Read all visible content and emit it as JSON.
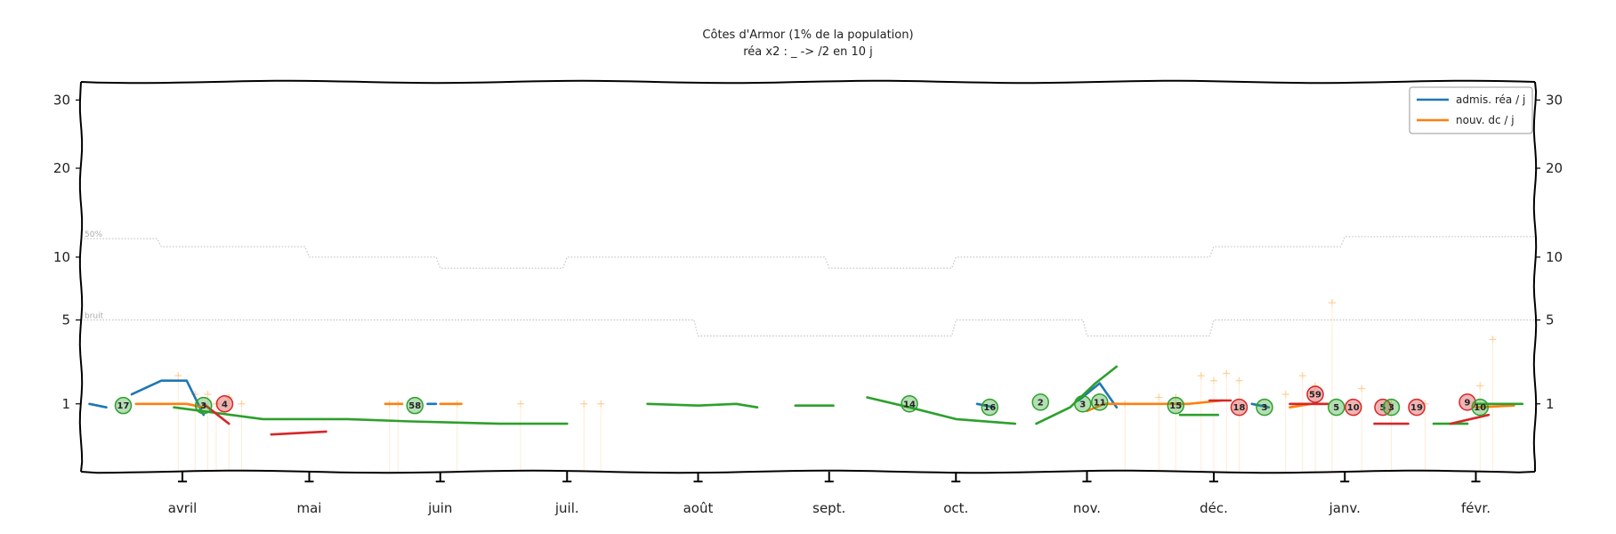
{
  "chart_data": {
    "type": "line",
    "title": "Côtes d'Armor (1% de la population)",
    "subtitle": "réa x2 : _ -> /2 en 10 j",
    "xlabel": "",
    "ylabel": "",
    "scale": "sqrt",
    "ylim": [
      0,
      33
    ],
    "yticks": [
      1,
      5,
      10,
      20,
      30
    ],
    "x_domain": [
      "2020-03-08",
      "2021-02-15"
    ],
    "months": [
      {
        "label": "avril",
        "date": "2020-04-01"
      },
      {
        "label": "mai",
        "date": "2020-05-01"
      },
      {
        "label": "juin",
        "date": "2020-06-01"
      },
      {
        "label": "juil.",
        "date": "2020-07-01"
      },
      {
        "label": "août",
        "date": "2020-08-01"
      },
      {
        "label": "sept.",
        "date": "2020-09-01"
      },
      {
        "label": "oct.",
        "date": "2020-10-01"
      },
      {
        "label": "nov.",
        "date": "2020-11-01"
      },
      {
        "label": "déc.",
        "date": "2020-12-01"
      },
      {
        "label": "janv.",
        "date": "2021-01-01"
      },
      {
        "label": "févr.",
        "date": "2021-02-01"
      }
    ],
    "legend": {
      "position": "top-right"
    },
    "series": [
      {
        "name": "admis. réa / j",
        "color": "#1f77b4",
        "segments": [
          [
            [
              "2020-03-10",
              1.0
            ],
            [
              "2020-03-14",
              0.9
            ]
          ],
          [
            [
              "2020-03-20",
              1.3
            ],
            [
              "2020-03-27",
              1.8
            ],
            [
              "2020-04-02",
              1.8
            ],
            [
              "2020-04-06",
              0.7
            ]
          ],
          [
            [
              "2020-05-29",
              1.0
            ],
            [
              "2020-05-31",
              1.0
            ]
          ],
          [
            [
              "2020-10-06",
              1.0
            ],
            [
              "2020-10-10",
              0.9
            ]
          ],
          [
            [
              "2020-10-30",
              1.1
            ],
            [
              "2020-11-04",
              1.7
            ],
            [
              "2020-11-08",
              0.9
            ]
          ],
          [
            [
              "2020-12-10",
              1.0
            ],
            [
              "2020-12-14",
              0.9
            ]
          ]
        ]
      },
      {
        "name": "nouv. dc / j",
        "color": "#ff7f0e",
        "segments": [
          [
            [
              "2020-03-21",
              1.0
            ],
            [
              "2020-04-02",
              1.0
            ],
            [
              "2020-04-06",
              0.9
            ]
          ],
          [
            [
              "2020-05-19",
              1.0
            ],
            [
              "2020-05-23",
              1.0
            ]
          ],
          [
            [
              "2020-06-01",
              1.0
            ],
            [
              "2020-06-06",
              1.0
            ]
          ],
          [
            [
              "2020-11-01",
              0.8
            ],
            [
              "2020-11-05",
              1.0
            ],
            [
              "2020-11-15",
              1.0
            ],
            [
              "2020-11-25",
              1.0
            ],
            [
              "2020-12-03",
              1.1
            ]
          ],
          [
            [
              "2020-12-19",
              0.9
            ],
            [
              "2020-12-24",
              1.0
            ],
            [
              "2020-12-28",
              1.0
            ]
          ],
          [
            [
              "2021-02-01",
              0.9
            ],
            [
              "2021-02-10",
              0.95
            ]
          ]
        ]
      },
      {
        "color": "#2ca02c",
        "segments": [
          [
            [
              "2020-03-30",
              0.9
            ],
            [
              "2020-04-20",
              0.6
            ],
            [
              "2020-05-10",
              0.6
            ],
            [
              "2020-05-25",
              0.55
            ],
            [
              "2020-06-15",
              0.5
            ],
            [
              "2020-07-01",
              0.5
            ]
          ],
          [
            [
              "2020-07-20",
              1.0
            ],
            [
              "2020-08-01",
              0.95
            ],
            [
              "2020-08-10",
              1.0
            ],
            [
              "2020-08-15",
              0.9
            ]
          ],
          [
            [
              "2020-08-24",
              0.95
            ],
            [
              "2020-09-02",
              0.95
            ]
          ],
          [
            [
              "2020-09-10",
              1.2
            ],
            [
              "2020-09-20",
              0.9
            ],
            [
              "2020-10-01",
              0.6
            ],
            [
              "2020-10-15",
              0.5
            ]
          ],
          [
            [
              "2020-10-20",
              0.5
            ],
            [
              "2020-10-28",
              0.9
            ],
            [
              "2020-11-03",
              1.7
            ],
            [
              "2020-11-08",
              2.4
            ]
          ],
          [
            [
              "2020-11-23",
              0.7
            ],
            [
              "2020-12-02",
              0.7
            ]
          ],
          [
            [
              "2021-01-22",
              0.5
            ],
            [
              "2021-01-30",
              0.5
            ]
          ],
          [
            [
              "2021-02-01",
              1.0
            ],
            [
              "2021-02-12",
              1.0
            ]
          ]
        ]
      },
      {
        "color": "#d62728",
        "segments": [
          [
            [
              "2020-04-06",
              1.0
            ],
            [
              "2020-04-12",
              0.5
            ]
          ],
          [
            [
              "2020-04-22",
              0.3
            ],
            [
              "2020-05-05",
              0.35
            ]
          ],
          [
            [
              "2020-11-30",
              1.1
            ],
            [
              "2020-12-05",
              1.1
            ]
          ],
          [
            [
              "2020-12-19",
              1.0
            ],
            [
              "2020-12-28",
              1.0
            ]
          ],
          [
            [
              "2021-01-08",
              0.5
            ],
            [
              "2021-01-16",
              0.5
            ]
          ],
          [
            [
              "2021-01-26",
              0.5
            ],
            [
              "2021-02-04",
              0.7
            ]
          ]
        ]
      }
    ],
    "reference_lines": [
      {
        "label": "50%",
        "points": [
          [
            "2020-03-08",
            11.8
          ],
          [
            "2020-03-26",
            11.8
          ],
          [
            "2020-03-27",
            11.0
          ],
          [
            "2020-04-30",
            11.0
          ],
          [
            "2020-05-01",
            10.0
          ],
          [
            "2020-05-31",
            10.0
          ],
          [
            "2020-06-01",
            9.0
          ],
          [
            "2020-06-30",
            9.0
          ],
          [
            "2020-07-01",
            10.0
          ],
          [
            "2020-08-31",
            10.0
          ],
          [
            "2020-09-01",
            9.0
          ],
          [
            "2020-09-30",
            9.0
          ],
          [
            "2020-10-01",
            10.0
          ],
          [
            "2020-11-30",
            10.0
          ],
          [
            "2020-12-01",
            11.0
          ],
          [
            "2020-12-31",
            11.0
          ],
          [
            "2021-01-01",
            12.0
          ],
          [
            "2021-02-15",
            12.0
          ]
        ]
      },
      {
        "label": "bruit",
        "points": [
          [
            "2020-03-08",
            5.0
          ],
          [
            "2020-07-31",
            5.0
          ],
          [
            "2020-08-01",
            4.0
          ],
          [
            "2020-09-30",
            4.0
          ],
          [
            "2020-10-01",
            5.0
          ],
          [
            "2020-10-31",
            5.0
          ],
          [
            "2020-11-01",
            4.0
          ],
          [
            "2020-11-30",
            4.0
          ],
          [
            "2020-12-01",
            5.0
          ],
          [
            "2021-02-15",
            5.0
          ]
        ]
      }
    ],
    "daily_markers": [
      [
        "2020-03-31",
        2.0
      ],
      [
        "2020-04-04",
        1.3
      ],
      [
        "2020-04-07",
        1.3
      ],
      [
        "2020-04-09",
        1.0
      ],
      [
        "2020-04-12",
        1.2
      ],
      [
        "2020-04-15",
        1.0
      ],
      [
        "2020-05-20",
        1.0
      ],
      [
        "2020-05-22",
        1.0
      ],
      [
        "2020-06-05",
        1.0
      ],
      [
        "2020-06-20",
        1.0
      ],
      [
        "2020-07-05",
        1.0
      ],
      [
        "2020-07-09",
        1.0
      ],
      [
        "2020-11-10",
        1.0
      ],
      [
        "2020-11-18",
        1.2
      ],
      [
        "2020-11-22",
        1.2
      ],
      [
        "2020-11-28",
        2.0
      ],
      [
        "2020-12-01",
        1.8
      ],
      [
        "2020-12-04",
        2.1
      ],
      [
        "2020-12-07",
        1.8
      ],
      [
        "2020-12-18",
        1.3
      ],
      [
        "2020-12-22",
        2.0
      ],
      [
        "2020-12-25",
        1.6
      ],
      [
        "2020-12-29",
        6.2
      ],
      [
        "2021-01-05",
        1.5
      ],
      [
        "2021-01-12",
        1.0
      ],
      [
        "2021-01-20",
        1.0
      ],
      [
        "2021-02-02",
        1.6
      ],
      [
        "2021-02-05",
        3.8
      ]
    ],
    "annotations": [
      {
        "text": "17",
        "date": "2020-03-18",
        "y": 0.95,
        "color": "#2ca02c"
      },
      {
        "text": "3",
        "date": "2020-04-06",
        "y": 0.95,
        "color": "#2ca02c"
      },
      {
        "text": "4",
        "date": "2020-04-11",
        "y": 1.0,
        "color": "#d62728"
      },
      {
        "text": "58",
        "date": "2020-05-26",
        "y": 0.95,
        "color": "#2ca02c"
      },
      {
        "text": "14",
        "date": "2020-09-20",
        "y": 1.0,
        "color": "#2ca02c"
      },
      {
        "text": "16",
        "date": "2020-10-09",
        "y": 0.9,
        "color": "#2ca02c"
      },
      {
        "text": "2",
        "date": "2020-10-21",
        "y": 1.05,
        "color": "#2ca02c"
      },
      {
        "text": "3",
        "date": "2020-10-31",
        "y": 1.0,
        "color": "#2ca02c"
      },
      {
        "text": "11",
        "date": "2020-11-04",
        "y": 1.05,
        "color": "#2ca02c"
      },
      {
        "text": "15",
        "date": "2020-11-22",
        "y": 0.95,
        "color": "#2ca02c"
      },
      {
        "text": "18",
        "date": "2020-12-07",
        "y": 0.9,
        "color": "#d62728"
      },
      {
        "text": "3",
        "date": "2020-12-13",
        "y": 0.9,
        "color": "#2ca02c"
      },
      {
        "text": "59",
        "date": "2020-12-25",
        "y": 1.3,
        "color": "#d62728"
      },
      {
        "text": "5",
        "date": "2020-12-30",
        "y": 0.9,
        "color": "#2ca02c"
      },
      {
        "text": "10",
        "date": "2021-01-03",
        "y": 0.9,
        "color": "#d62728"
      },
      {
        "text": "5",
        "date": "2021-01-10",
        "y": 0.9,
        "color": "#d62728"
      },
      {
        "text": "3",
        "date": "2021-01-12",
        "y": 0.9,
        "color": "#2ca02c"
      },
      {
        "text": "19",
        "date": "2021-01-18",
        "y": 0.9,
        "color": "#d62728"
      },
      {
        "text": "9",
        "date": "2021-01-30",
        "y": 1.05,
        "color": "#d62728"
      },
      {
        "text": "10",
        "date": "2021-02-02",
        "y": 0.9,
        "color": "#2ca02c"
      }
    ]
  }
}
